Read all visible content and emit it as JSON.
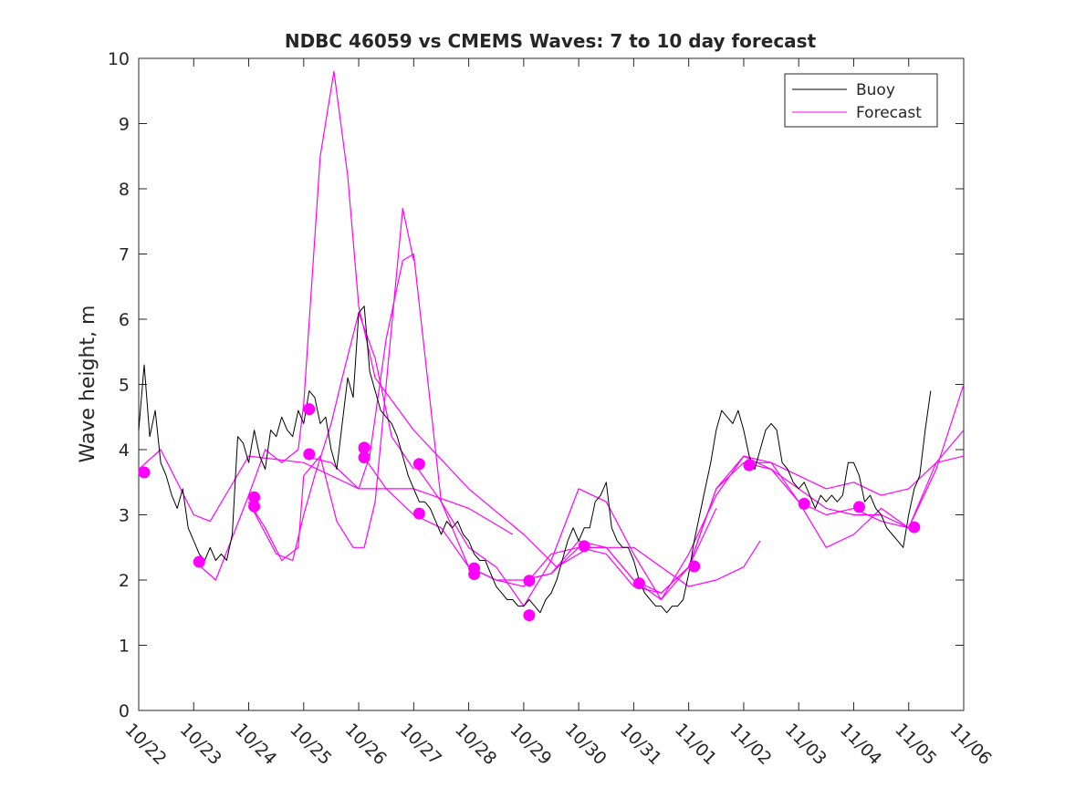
{
  "chart_data": {
    "type": "line",
    "title": "NDBC 46059 vs CMEMS Waves: 7 to 10 day forecast",
    "xlabel": "",
    "ylabel": "Wave height, m",
    "xlim": [
      0,
      15
    ],
    "ylim": [
      0,
      10
    ],
    "yticks": [
      0,
      1,
      2,
      3,
      4,
      5,
      6,
      7,
      8,
      9,
      10
    ],
    "ytick_labels": [
      "0",
      "1",
      "2",
      "3",
      "4",
      "5",
      "6",
      "7",
      "8",
      "9",
      "10"
    ],
    "xticks": [
      0,
      1,
      2,
      3,
      4,
      5,
      6,
      7,
      8,
      9,
      10,
      11,
      12,
      13,
      14,
      15
    ],
    "xtick_labels": [
      "10/22",
      "10/23",
      "10/24",
      "10/25",
      "10/26",
      "10/27",
      "10/28",
      "10/29",
      "10/30",
      "10/31",
      "11/01",
      "11/02",
      "11/03",
      "11/04",
      "11/05",
      "11/06"
    ],
    "legend": {
      "position": "top-right",
      "entries": [
        {
          "label": "Buoy",
          "color": "#000000"
        },
        {
          "label": "Forecast",
          "color": "#ff00ff"
        }
      ]
    },
    "buoy": {
      "name": "Buoy",
      "color": "#000000",
      "x": [
        0,
        0.1,
        0.2,
        0.3,
        0.4,
        0.5,
        0.6,
        0.7,
        0.8,
        0.9,
        1.0,
        1.1,
        1.2,
        1.3,
        1.4,
        1.5,
        1.6,
        1.7,
        1.8,
        1.9,
        2.0,
        2.1,
        2.2,
        2.3,
        2.4,
        2.5,
        2.6,
        2.7,
        2.8,
        2.9,
        3.0,
        3.1,
        3.2,
        3.3,
        3.4,
        3.5,
        3.6,
        3.7,
        3.8,
        3.9,
        4.0,
        4.1,
        4.2,
        4.3,
        4.4,
        4.5,
        4.6,
        4.7,
        4.8,
        4.9,
        5.0,
        5.1,
        5.2,
        5.3,
        5.4,
        5.5,
        5.6,
        5.7,
        5.8,
        5.9,
        6.0,
        6.1,
        6.2,
        6.3,
        6.4,
        6.5,
        6.6,
        6.7,
        6.8,
        6.9,
        7.0,
        7.1,
        7.2,
        7.3,
        7.4,
        7.5,
        7.6,
        7.7,
        7.8,
        7.9,
        8.0,
        8.1,
        8.2,
        8.3,
        8.4,
        8.5,
        8.6,
        8.7,
        8.8,
        8.9,
        9.0,
        9.1,
        9.2,
        9.3,
        9.4,
        9.5,
        9.6,
        9.7,
        9.8,
        9.9,
        10.0,
        10.1,
        10.2,
        10.3,
        10.4,
        10.5,
        10.6,
        10.7,
        10.8,
        10.9,
        11.0,
        11.1,
        11.2,
        11.3,
        11.4,
        11.5,
        11.6,
        11.7,
        11.8,
        11.9,
        12.0,
        12.1,
        12.2,
        12.3,
        12.4,
        12.5,
        12.6,
        12.7,
        12.8,
        12.9,
        13.0,
        13.1,
        13.2,
        13.3,
        13.4,
        13.5,
        13.6,
        13.7,
        13.8,
        13.9,
        14.0,
        14.1,
        14.2,
        14.3,
        14.4
      ],
      "y": [
        4.3,
        5.3,
        4.2,
        4.6,
        3.8,
        3.6,
        3.3,
        3.1,
        3.4,
        2.8,
        2.6,
        2.4,
        2.3,
        2.5,
        2.3,
        2.4,
        2.3,
        2.7,
        4.2,
        4.1,
        3.8,
        4.3,
        3.9,
        3.7,
        4.3,
        4.2,
        4.5,
        4.3,
        4.2,
        4.6,
        4.4,
        4.9,
        4.8,
        4.4,
        4.5,
        4.0,
        3.7,
        4.4,
        5.1,
        4.8,
        6.1,
        6.2,
        5.2,
        4.9,
        4.6,
        4.5,
        4.4,
        4.2,
        3.9,
        3.6,
        3.4,
        3.2,
        3.2,
        3.1,
        2.9,
        2.7,
        2.9,
        2.8,
        2.9,
        2.7,
        2.6,
        2.4,
        2.3,
        2.3,
        2.1,
        1.9,
        1.8,
        1.7,
        1.7,
        1.6,
        1.6,
        1.7,
        1.6,
        1.5,
        1.7,
        1.8,
        2.0,
        2.3,
        2.6,
        2.8,
        2.6,
        2.8,
        2.8,
        3.2,
        3.3,
        3.5,
        2.8,
        2.6,
        2.5,
        2.5,
        2.3,
        2.0,
        1.8,
        1.7,
        1.6,
        1.6,
        1.5,
        1.6,
        1.6,
        1.7,
        2.1,
        2.6,
        3.0,
        3.4,
        3.8,
        4.3,
        4.6,
        4.5,
        4.4,
        4.6,
        4.3,
        3.9,
        3.7,
        4.0,
        4.3,
        4.4,
        4.3,
        3.8,
        3.7,
        3.5,
        3.4,
        3.5,
        3.3,
        3.1,
        3.3,
        3.2,
        3.3,
        3.2,
        3.3,
        3.8,
        3.8,
        3.6,
        3.2,
        3.3,
        3.1,
        3.0,
        2.8,
        2.7,
        2.6,
        2.5,
        3.0,
        3.4,
        3.6,
        4.3,
        4.9
      ]
    },
    "forecast_series": [
      {
        "name": "Forecast",
        "x": [
          0,
          0.4,
          1.0,
          1.3,
          2.0,
          3.0,
          4.0,
          5.0,
          6.0,
          6.8
        ],
        "y": [
          3.7,
          4.0,
          3.0,
          2.9,
          3.9,
          3.8,
          3.4,
          3.4,
          3.1,
          2.7
        ]
      },
      {
        "name": "Forecast",
        "x": [
          1.0,
          1.4,
          2.0,
          2.3,
          2.6,
          2.9,
          3.0,
          3.3,
          3.55,
          3.8,
          4.0,
          4.3,
          5.0,
          6.0,
          7.0,
          7.6,
          8.2,
          9.0,
          9.5,
          10.0,
          10.5,
          11.0,
          11.3
        ],
        "y": [
          2.3,
          2.0,
          3.3,
          4.0,
          3.8,
          4.0,
          4.7,
          8.5,
          9.8,
          8.2,
          6.2,
          5.1,
          4.3,
          3.4,
          2.7,
          2.2,
          2.5,
          2.5,
          2.2,
          1.9,
          2.0,
          2.2,
          2.6
        ]
      },
      {
        "name": "Forecast",
        "x": [
          2.0,
          2.5,
          2.8,
          3.0,
          3.2,
          3.5,
          3.7,
          4.0,
          4.3,
          4.6,
          5.0
        ],
        "y": [
          3.2,
          2.4,
          2.3,
          3.0,
          3.6,
          4.4,
          5.1,
          6.1,
          5.4,
          4.2,
          3.7
        ]
      },
      {
        "name": "Forecast",
        "x": [
          2.0,
          2.3,
          2.6,
          2.9,
          3.0,
          3.3,
          3.6,
          3.9,
          4.1,
          4.3,
          4.5,
          4.8,
          5.0
        ],
        "y": [
          3.2,
          2.8,
          2.3,
          2.5,
          3.6,
          3.9,
          2.9,
          2.5,
          2.5,
          3.2,
          5.0,
          7.7,
          6.9
        ]
      },
      {
        "name": "Forecast",
        "x": [
          3.0,
          3.5,
          4.0,
          4.2,
          4.5,
          4.8,
          5.0,
          5.5,
          6.0,
          6.5,
          7.0,
          7.5,
          8.0,
          8.5,
          9.0,
          9.5,
          10.0,
          10.5
        ],
        "y": [
          3.9,
          3.8,
          3.4,
          3.9,
          5.7,
          6.9,
          7.0,
          3.2,
          2.5,
          2.2,
          1.6,
          2.3,
          3.4,
          3.2,
          2.4,
          1.7,
          2.2,
          3.1
        ]
      },
      {
        "name": "Forecast",
        "x": [
          4.0,
          4.5,
          5.0,
          5.5,
          6.0,
          6.5,
          7.0,
          7.5,
          8.0,
          8.5,
          9.0,
          9.5,
          10.0,
          10.5,
          11.0,
          11.5,
          12.0,
          12.5,
          13.0,
          13.5,
          14.0
        ],
        "y": [
          4.0,
          3.4,
          3.0,
          2.8,
          2.2,
          2.0,
          1.9,
          2.4,
          2.5,
          2.5,
          2.0,
          1.7,
          2.4,
          3.3,
          3.9,
          3.7,
          3.4,
          3.1,
          3.0,
          3.0,
          2.8
        ]
      },
      {
        "name": "Forecast",
        "x": [
          5.0,
          5.5,
          6.0,
          6.5,
          7.0,
          7.5,
          8.0,
          8.5,
          9.0,
          9.5,
          10.0,
          10.5,
          11.0,
          11.5,
          12.0,
          12.5,
          13.0,
          13.5,
          14.0,
          14.5,
          15.0
        ],
        "y": [
          3.8,
          3.2,
          2.2,
          2.0,
          2.0,
          2.1,
          2.6,
          2.5,
          2.0,
          1.8,
          2.2,
          3.4,
          3.9,
          3.8,
          3.6,
          3.4,
          3.5,
          3.3,
          3.4,
          3.8,
          3.9
        ]
      },
      {
        "name": "Forecast",
        "x": [
          7.0,
          7.5,
          8.0,
          8.5,
          9.0,
          9.5,
          10.0,
          10.5,
          11.0,
          11.5,
          12.0,
          12.5,
          13.0,
          13.5,
          14.0,
          14.5,
          15.0
        ],
        "y": [
          2.0,
          2.1,
          2.5,
          2.4,
          1.9,
          1.8,
          2.2,
          3.4,
          3.8,
          3.8,
          3.2,
          2.5,
          2.7,
          3.1,
          2.8,
          3.7,
          5.0
        ]
      },
      {
        "name": "Forecast",
        "x": [
          11.0,
          11.5,
          12.0,
          12.5,
          13.0,
          13.5,
          14.0,
          14.5,
          15.0
        ],
        "y": [
          3.8,
          3.7,
          3.2,
          3.0,
          3.1,
          2.9,
          2.8,
          3.8,
          4.3
        ]
      }
    ],
    "forecast_markers": {
      "name": "Forecast start points",
      "x": [
        0.1,
        1.1,
        2.1,
        2.1,
        3.1,
        3.1,
        4.1,
        4.1,
        5.1,
        5.1,
        6.1,
        6.1,
        7.1,
        7.1,
        8.1,
        9.1,
        10.1,
        11.1,
        12.1,
        13.1,
        14.1
      ],
      "y": [
        3.65,
        2.28,
        3.27,
        3.13,
        4.62,
        3.93,
        4.03,
        3.88,
        3.78,
        3.02,
        2.18,
        2.09,
        1.99,
        1.46,
        2.52,
        1.95,
        2.21,
        3.76,
        3.17,
        3.12,
        2.81
      ]
    }
  }
}
